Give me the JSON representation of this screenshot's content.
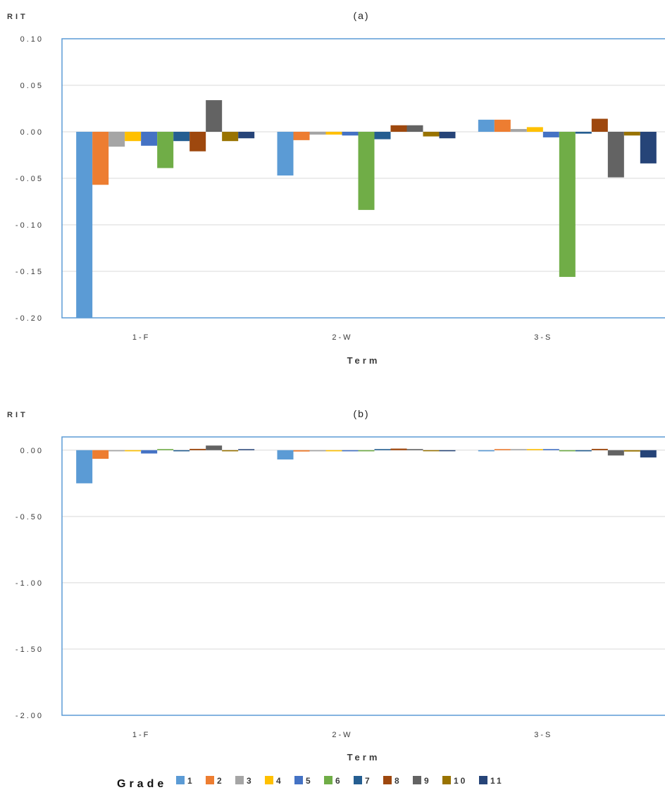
{
  "chart_data": [
    {
      "type": "bar",
      "title": "(a)",
      "ylabel": "RIT",
      "xlabel": "Term",
      "categories": [
        "1-F",
        "2-W",
        "3-S"
      ],
      "ylim": [
        -0.2,
        0.1
      ],
      "yticks": [
        0.1,
        0.05,
        0.0,
        -0.05,
        -0.1,
        -0.15,
        -0.2
      ],
      "ytick_labels": [
        "0.10",
        "0.05",
        "0.00",
        "-0.05",
        "-0.10",
        "-0.15",
        "-0.20"
      ],
      "grid": true,
      "series": [
        {
          "name": "1",
          "values": [
            -0.2,
            -0.047,
            0.013
          ]
        },
        {
          "name": "2",
          "values": [
            -0.057,
            -0.009,
            0.013
          ]
        },
        {
          "name": "3",
          "values": [
            -0.016,
            -0.003,
            0.003
          ]
        },
        {
          "name": "4",
          "values": [
            -0.01,
            -0.003,
            0.005
          ]
        },
        {
          "name": "5",
          "values": [
            -0.015,
            -0.004,
            -0.006
          ]
        },
        {
          "name": "6",
          "values": [
            -0.039,
            -0.084,
            -0.156
          ]
        },
        {
          "name": "7",
          "values": [
            -0.01,
            -0.008,
            -0.002
          ]
        },
        {
          "name": "8",
          "values": [
            -0.021,
            0.007,
            0.014
          ]
        },
        {
          "name": "9",
          "values": [
            0.034,
            0.007,
            -0.049
          ]
        },
        {
          "name": "10",
          "values": [
            -0.01,
            -0.005,
            -0.004
          ]
        },
        {
          "name": "11",
          "values": [
            -0.007,
            -0.007,
            -0.034
          ]
        }
      ]
    },
    {
      "type": "bar",
      "title": "(b)",
      "ylabel": "RIT",
      "xlabel": "Term",
      "categories": [
        "1-F",
        "2-W",
        "3-S"
      ],
      "ylim": [
        -2.0,
        0.1
      ],
      "yticks": [
        0.0,
        -0.5,
        -1.0,
        -1.5,
        -2.0
      ],
      "ytick_labels": [
        "0.00",
        "-0.50",
        "-1.00",
        "-1.50",
        "-2.00"
      ],
      "grid": true,
      "series": [
        {
          "name": "1",
          "values": [
            -0.25,
            -0.07,
            -0.005
          ]
        },
        {
          "name": "2",
          "values": [
            -0.065,
            -0.01,
            0.005
          ]
        },
        {
          "name": "3",
          "values": [
            -0.005,
            -0.003,
            0.002
          ]
        },
        {
          "name": "4",
          "values": [
            -0.002,
            -0.002,
            0.002
          ]
        },
        {
          "name": "5",
          "values": [
            -0.025,
            -0.003,
            0.005
          ]
        },
        {
          "name": "6",
          "values": [
            0.005,
            -0.002,
            -0.003
          ]
        },
        {
          "name": "7",
          "values": [
            -0.003,
            0.003,
            -0.002
          ]
        },
        {
          "name": "8",
          "values": [
            0.01,
            0.012,
            0.01
          ]
        },
        {
          "name": "9",
          "values": [
            0.035,
            0.005,
            -0.04
          ]
        },
        {
          "name": "10",
          "values": [
            -0.002,
            -0.008,
            -0.01
          ]
        },
        {
          "name": "11",
          "values": [
            0.008,
            -0.008,
            -0.055
          ]
        }
      ]
    }
  ],
  "legend": {
    "title": "Grade",
    "placement": "bottom",
    "items": [
      "1",
      "2",
      "3",
      "4",
      "5",
      "6",
      "7",
      "8",
      "9",
      "10",
      "11"
    ]
  },
  "colors": [
    "#5B9BD5",
    "#ED7D31",
    "#A5A5A5",
    "#FFC000",
    "#4472C4",
    "#70AD47",
    "#255E91",
    "#9E480E",
    "#636363",
    "#997300",
    "#264478"
  ],
  "frame_color": "#5B9BD5",
  "grid_color": "#D9D9D9"
}
